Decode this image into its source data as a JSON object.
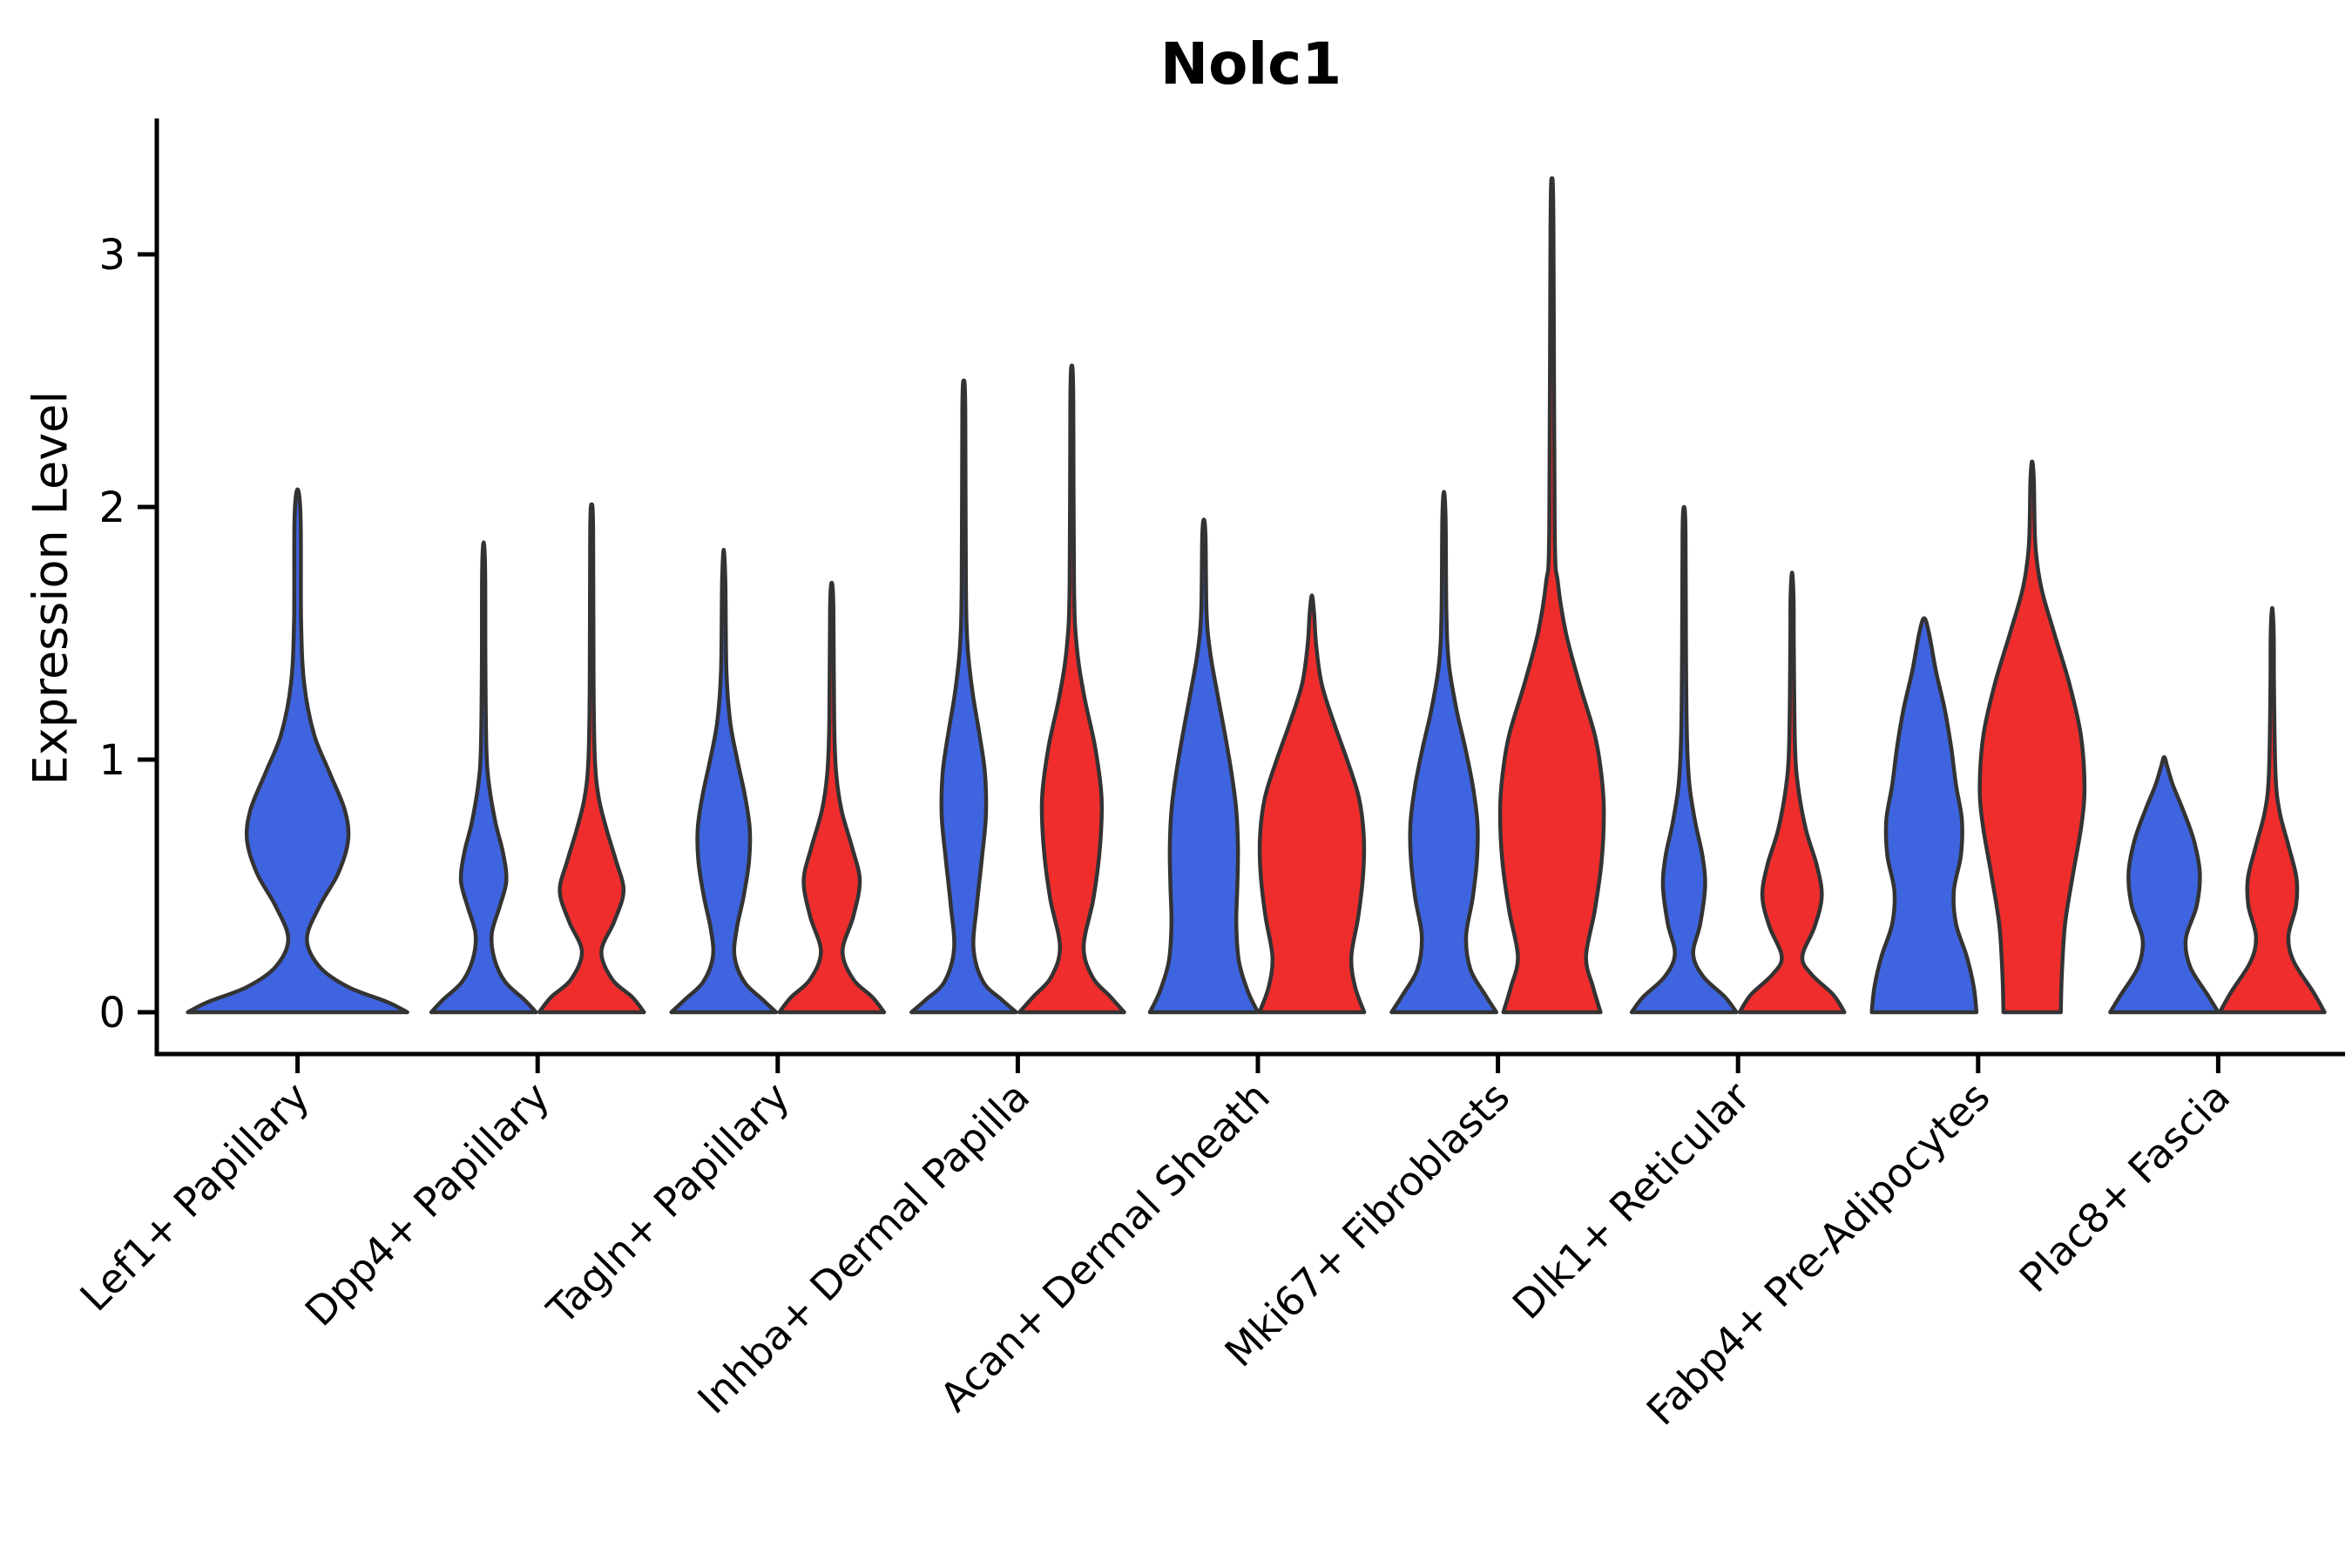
{
  "chart_data": {
    "type": "violin",
    "title": "Nolc1",
    "ylabel": "Expression Level",
    "xlabel": "",
    "yticks": [
      0,
      1,
      2,
      3
    ],
    "ylim": [
      -0.17,
      3.53
    ],
    "grid": false,
    "legend": "none",
    "colors": {
      "group_blue": "#3E64DF",
      "group_red": "#EF2D2D",
      "outline": "#333333",
      "axis": "#000000"
    },
    "categories": [
      "Lef1+ Papillary",
      "Dpp4+ Papillary",
      "Tagln+ Papillary",
      "Inhba+ Dermal Papilla",
      "Acan+ Dermal Sheath",
      "Mki67+ Fibroblasts",
      "Dlk1+ Reticular",
      "Fabp4+ Pre-Adipocytes",
      "Plac8+ Fascia"
    ],
    "violins": [
      {
        "category": 0,
        "group": "blue",
        "span": "double",
        "max": 2.07,
        "profile": [
          [
            0,
            1.0
          ],
          [
            0.04,
            0.82
          ],
          [
            0.1,
            0.46
          ],
          [
            0.18,
            0.2
          ],
          [
            0.29,
            0.085
          ],
          [
            0.42,
            0.2
          ],
          [
            0.55,
            0.37
          ],
          [
            0.68,
            0.46
          ],
          [
            0.8,
            0.43
          ],
          [
            0.95,
            0.29
          ],
          [
            1.1,
            0.15
          ],
          [
            1.3,
            0.06
          ],
          [
            1.55,
            0.032
          ],
          [
            1.95,
            0.028
          ],
          [
            2.07,
            0
          ]
        ]
      },
      {
        "category": 1,
        "group": "blue",
        "span": "pair",
        "max": 1.86,
        "profile": [
          [
            0,
            0.97
          ],
          [
            0.05,
            0.75
          ],
          [
            0.12,
            0.4
          ],
          [
            0.21,
            0.2
          ],
          [
            0.31,
            0.15
          ],
          [
            0.42,
            0.3
          ],
          [
            0.52,
            0.42
          ],
          [
            0.63,
            0.36
          ],
          [
            0.75,
            0.22
          ],
          [
            0.9,
            0.1
          ],
          [
            1.05,
            0.05
          ],
          [
            1.4,
            0.032
          ],
          [
            1.75,
            0.028
          ],
          [
            1.86,
            0
          ]
        ]
      },
      {
        "category": 1,
        "group": "red",
        "span": "pair",
        "max": 2.01,
        "profile": [
          [
            0,
            0.97
          ],
          [
            0.06,
            0.75
          ],
          [
            0.13,
            0.38
          ],
          [
            0.24,
            0.18
          ],
          [
            0.36,
            0.42
          ],
          [
            0.48,
            0.59
          ],
          [
            0.6,
            0.45
          ],
          [
            0.72,
            0.28
          ],
          [
            0.85,
            0.13
          ],
          [
            1.0,
            0.06
          ],
          [
            1.3,
            0.035
          ],
          [
            1.9,
            0.028
          ],
          [
            2.01,
            0
          ]
        ]
      },
      {
        "category": 2,
        "group": "blue",
        "span": "pair",
        "max": 1.83,
        "profile": [
          [
            0,
            0.97
          ],
          [
            0.05,
            0.72
          ],
          [
            0.12,
            0.38
          ],
          [
            0.22,
            0.2
          ],
          [
            0.33,
            0.24
          ],
          [
            0.46,
            0.37
          ],
          [
            0.6,
            0.47
          ],
          [
            0.73,
            0.48
          ],
          [
            0.86,
            0.39
          ],
          [
            1.0,
            0.25
          ],
          [
            1.15,
            0.12
          ],
          [
            1.35,
            0.05
          ],
          [
            1.7,
            0.03
          ],
          [
            1.83,
            0
          ]
        ]
      },
      {
        "category": 2,
        "group": "red",
        "span": "pair",
        "max": 1.7,
        "profile": [
          [
            0,
            0.97
          ],
          [
            0.06,
            0.75
          ],
          [
            0.13,
            0.4
          ],
          [
            0.24,
            0.2
          ],
          [
            0.38,
            0.4
          ],
          [
            0.52,
            0.52
          ],
          [
            0.65,
            0.38
          ],
          [
            0.8,
            0.18
          ],
          [
            0.95,
            0.08
          ],
          [
            1.15,
            0.045
          ],
          [
            1.6,
            0.03
          ],
          [
            1.7,
            0
          ]
        ]
      },
      {
        "category": 3,
        "group": "blue",
        "span": "pair",
        "max": 2.5,
        "profile": [
          [
            0,
            0.97
          ],
          [
            0.05,
            0.7
          ],
          [
            0.12,
            0.36
          ],
          [
            0.25,
            0.18
          ],
          [
            0.42,
            0.24
          ],
          [
            0.6,
            0.33
          ],
          [
            0.78,
            0.41
          ],
          [
            0.95,
            0.39
          ],
          [
            1.1,
            0.29
          ],
          [
            1.27,
            0.16
          ],
          [
            1.45,
            0.07
          ],
          [
            1.7,
            0.038
          ],
          [
            2.38,
            0.028
          ],
          [
            2.5,
            0
          ]
        ]
      },
      {
        "category": 3,
        "group": "red",
        "span": "pair",
        "max": 2.56,
        "profile": [
          [
            0,
            0.97
          ],
          [
            0.06,
            0.72
          ],
          [
            0.14,
            0.38
          ],
          [
            0.26,
            0.22
          ],
          [
            0.45,
            0.4
          ],
          [
            0.65,
            0.52
          ],
          [
            0.85,
            0.55
          ],
          [
            1.05,
            0.43
          ],
          [
            1.25,
            0.23
          ],
          [
            1.45,
            0.09
          ],
          [
            1.7,
            0.04
          ],
          [
            2.42,
            0.028
          ],
          [
            2.56,
            0
          ]
        ]
      },
      {
        "category": 4,
        "group": "blue",
        "span": "pair",
        "max": 1.95,
        "profile": [
          [
            0,
            1.0
          ],
          [
            0.08,
            0.82
          ],
          [
            0.2,
            0.65
          ],
          [
            0.35,
            0.6
          ],
          [
            0.5,
            0.62
          ],
          [
            0.65,
            0.63
          ],
          [
            0.8,
            0.6
          ],
          [
            0.95,
            0.51
          ],
          [
            1.1,
            0.39
          ],
          [
            1.25,
            0.26
          ],
          [
            1.42,
            0.12
          ],
          [
            1.58,
            0.05
          ],
          [
            1.88,
            0.03
          ],
          [
            1.95,
            0
          ]
        ]
      },
      {
        "category": 4,
        "group": "red",
        "span": "pair",
        "max": 1.65,
        "profile": [
          [
            0,
            0.97
          ],
          [
            0.1,
            0.8
          ],
          [
            0.22,
            0.73
          ],
          [
            0.38,
            0.86
          ],
          [
            0.55,
            0.95
          ],
          [
            0.7,
            0.96
          ],
          [
            0.85,
            0.87
          ],
          [
            1.0,
            0.65
          ],
          [
            1.15,
            0.4
          ],
          [
            1.3,
            0.18
          ],
          [
            1.45,
            0.08
          ],
          [
            1.58,
            0.04
          ],
          [
            1.65,
            0
          ]
        ]
      },
      {
        "category": 5,
        "group": "blue",
        "span": "pair",
        "max": 2.06,
        "profile": [
          [
            0,
            0.97
          ],
          [
            0.07,
            0.76
          ],
          [
            0.17,
            0.49
          ],
          [
            0.3,
            0.41
          ],
          [
            0.45,
            0.53
          ],
          [
            0.6,
            0.61
          ],
          [
            0.75,
            0.62
          ],
          [
            0.9,
            0.53
          ],
          [
            1.05,
            0.39
          ],
          [
            1.2,
            0.23
          ],
          [
            1.38,
            0.09
          ],
          [
            1.58,
            0.045
          ],
          [
            1.95,
            0.03
          ],
          [
            2.06,
            0
          ]
        ]
      },
      {
        "category": 5,
        "group": "red",
        "span": "pair",
        "max": 3.3,
        "profile": [
          [
            0,
            0.9
          ],
          [
            0.1,
            0.76
          ],
          [
            0.22,
            0.63
          ],
          [
            0.4,
            0.79
          ],
          [
            0.6,
            0.92
          ],
          [
            0.8,
            0.96
          ],
          [
            0.95,
            0.91
          ],
          [
            1.1,
            0.79
          ],
          [
            1.3,
            0.51
          ],
          [
            1.5,
            0.26
          ],
          [
            1.7,
            0.11
          ],
          [
            1.92,
            0.05
          ],
          [
            3.1,
            0.028
          ],
          [
            3.3,
            0
          ]
        ]
      },
      {
        "category": 6,
        "group": "blue",
        "span": "pair",
        "max": 2.0,
        "profile": [
          [
            0,
            0.97
          ],
          [
            0.06,
            0.76
          ],
          [
            0.14,
            0.36
          ],
          [
            0.23,
            0.17
          ],
          [
            0.35,
            0.3
          ],
          [
            0.5,
            0.39
          ],
          [
            0.62,
            0.34
          ],
          [
            0.75,
            0.21
          ],
          [
            0.9,
            0.1
          ],
          [
            1.08,
            0.055
          ],
          [
            1.45,
            0.035
          ],
          [
            1.9,
            0.028
          ],
          [
            2.0,
            0
          ]
        ]
      },
      {
        "category": 6,
        "group": "red",
        "span": "pair",
        "max": 1.74,
        "profile": [
          [
            0,
            0.97
          ],
          [
            0.07,
            0.76
          ],
          [
            0.15,
            0.36
          ],
          [
            0.22,
            0.19
          ],
          [
            0.34,
            0.42
          ],
          [
            0.46,
            0.55
          ],
          [
            0.58,
            0.46
          ],
          [
            0.72,
            0.26
          ],
          [
            0.88,
            0.12
          ],
          [
            1.05,
            0.055
          ],
          [
            1.45,
            0.032
          ],
          [
            1.64,
            0.028
          ],
          [
            1.74,
            0
          ]
        ]
      },
      {
        "category": 7,
        "group": "blue",
        "span": "pair",
        "max": 1.56,
        "profile": [
          [
            0,
            0.97
          ],
          [
            0.1,
            0.92
          ],
          [
            0.22,
            0.79
          ],
          [
            0.35,
            0.59
          ],
          [
            0.48,
            0.55
          ],
          [
            0.62,
            0.68
          ],
          [
            0.76,
            0.7
          ],
          [
            0.9,
            0.59
          ],
          [
            1.05,
            0.5
          ],
          [
            1.2,
            0.38
          ],
          [
            1.35,
            0.22
          ],
          [
            1.5,
            0.09
          ],
          [
            1.56,
            0
          ]
        ]
      },
      {
        "category": 7,
        "group": "red",
        "span": "pair",
        "max": 2.18,
        "profile": [
          [
            0,
            0.53
          ],
          [
            0.15,
            0.55
          ],
          [
            0.35,
            0.61
          ],
          [
            0.55,
            0.76
          ],
          [
            0.75,
            0.92
          ],
          [
            0.9,
            0.97
          ],
          [
            1.1,
            0.9
          ],
          [
            1.3,
            0.69
          ],
          [
            1.5,
            0.41
          ],
          [
            1.68,
            0.17
          ],
          [
            1.85,
            0.06
          ],
          [
            2.1,
            0.032
          ],
          [
            2.18,
            0
          ]
        ]
      },
      {
        "category": 8,
        "group": "blue",
        "span": "pair",
        "max": 1.01,
        "profile": [
          [
            0,
            1.0
          ],
          [
            0.07,
            0.8
          ],
          [
            0.18,
            0.48
          ],
          [
            0.29,
            0.4
          ],
          [
            0.42,
            0.6
          ],
          [
            0.55,
            0.66
          ],
          [
            0.68,
            0.55
          ],
          [
            0.8,
            0.35
          ],
          [
            0.9,
            0.16
          ],
          [
            0.97,
            0.06
          ],
          [
            1.01,
            0
          ]
        ]
      },
      {
        "category": 8,
        "group": "red",
        "span": "pair",
        "max": 1.6,
        "profile": [
          [
            0,
            0.97
          ],
          [
            0.08,
            0.76
          ],
          [
            0.2,
            0.4
          ],
          [
            0.3,
            0.3
          ],
          [
            0.42,
            0.44
          ],
          [
            0.53,
            0.45
          ],
          [
            0.66,
            0.3
          ],
          [
            0.8,
            0.13
          ],
          [
            0.95,
            0.06
          ],
          [
            1.3,
            0.032
          ],
          [
            1.5,
            0.028
          ],
          [
            1.6,
            0
          ]
        ]
      }
    ]
  }
}
